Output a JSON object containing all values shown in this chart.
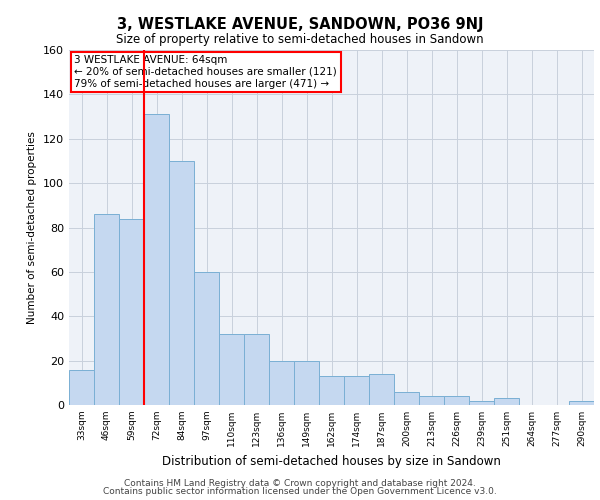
{
  "title": "3, WESTLAKE AVENUE, SANDOWN, PO36 9NJ",
  "subtitle": "Size of property relative to semi-detached houses in Sandown",
  "xlabel": "Distribution of semi-detached houses by size in Sandown",
  "ylabel": "Number of semi-detached properties",
  "categories": [
    "33sqm",
    "46sqm",
    "59sqm",
    "72sqm",
    "84sqm",
    "97sqm",
    "110sqm",
    "123sqm",
    "136sqm",
    "149sqm",
    "162sqm",
    "174sqm",
    "187sqm",
    "200sqm",
    "213sqm",
    "226sqm",
    "239sqm",
    "251sqm",
    "264sqm",
    "277sqm",
    "290sqm"
  ],
  "values": [
    16,
    86,
    84,
    131,
    110,
    60,
    32,
    32,
    20,
    20,
    13,
    13,
    14,
    6,
    4,
    4,
    2,
    3,
    0,
    0,
    2
  ],
  "bar_color": "#c5d8f0",
  "bar_edge_color": "#7aafd4",
  "grid_color": "#c8d0dc",
  "background_color": "#eef2f8",
  "property_label": "3 WESTLAKE AVENUE: 64sqm",
  "pct_smaller": 20,
  "count_smaller": 121,
  "pct_larger": 79,
  "count_larger": 471,
  "vline_pos": 2.5,
  "ylim": [
    0,
    160
  ],
  "yticks": [
    0,
    20,
    40,
    60,
    80,
    100,
    120,
    140,
    160
  ],
  "footer1": "Contains HM Land Registry data © Crown copyright and database right 2024.",
  "footer2": "Contains public sector information licensed under the Open Government Licence v3.0."
}
